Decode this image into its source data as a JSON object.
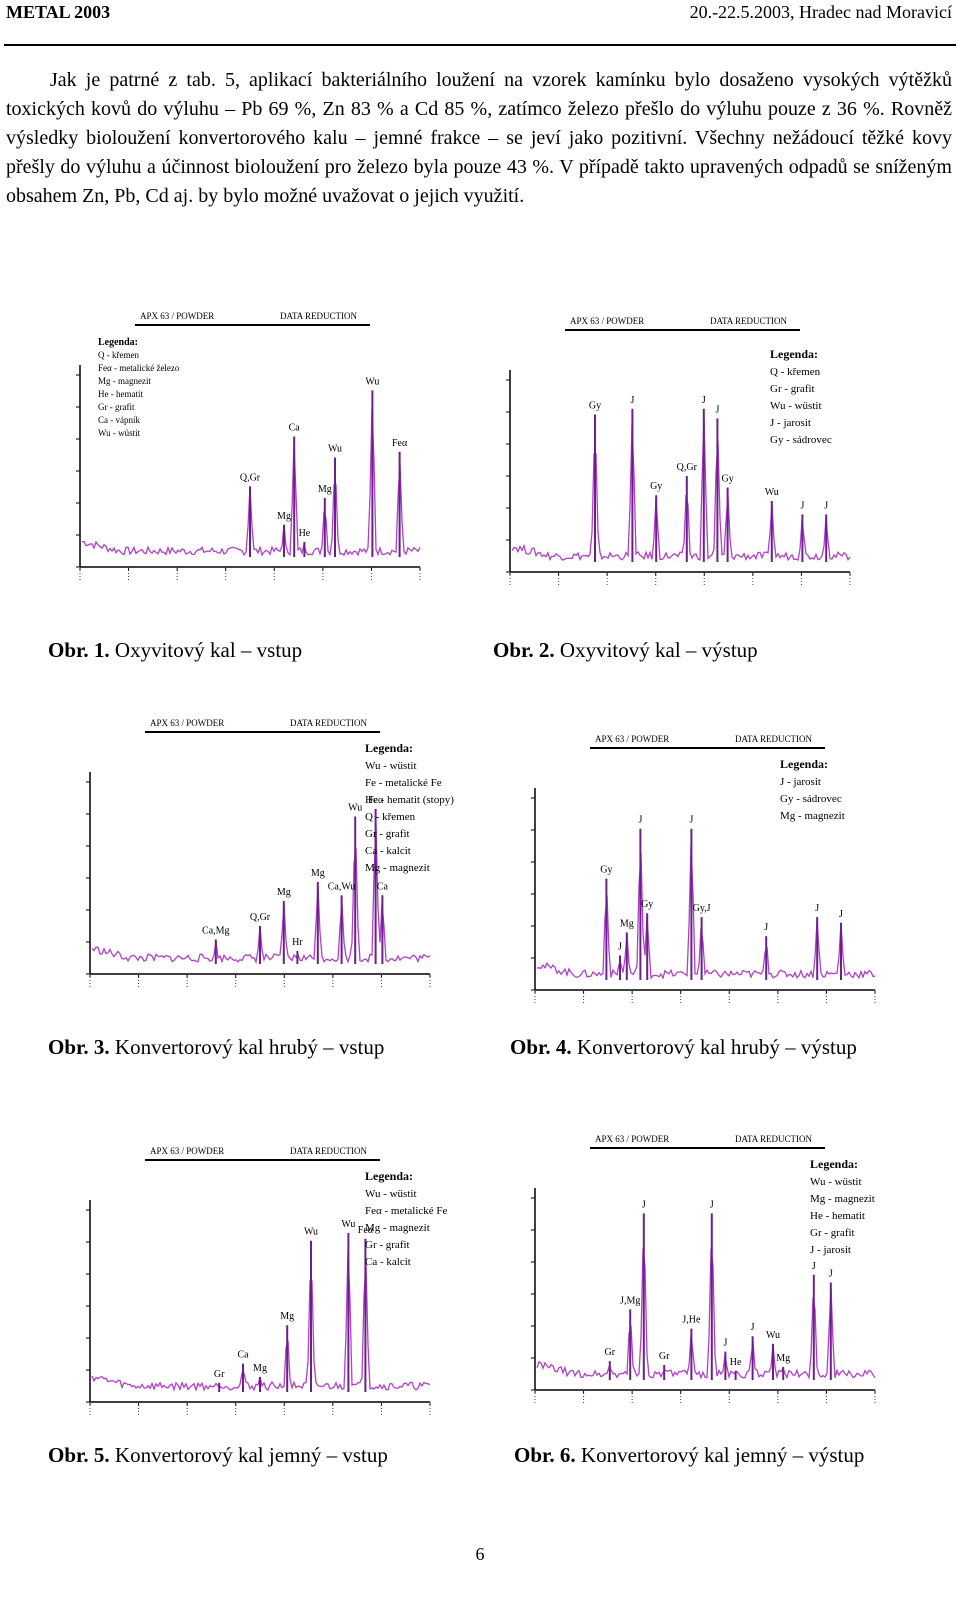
{
  "header": {
    "left": "METAL 2003",
    "right": "20.-22.5.2003, Hradec nad Moravicí"
  },
  "paragraph": "Jak je patrné z tab. 5, aplikací bakteriálního loužení na vzorek kamínku bylo dosaženo vysokých výtěžků toxických kovů do výluhu – Pb 69 %, Zn 83 % a Cd 85 %, zatímco železo přešlo do výluhu pouze z 36 %. Rovněž výsledky biolоužení konvertorového kalu – jemné frakce – se jeví jako pozitivní. Všechny nežádoucí těžké kovy přešly do výluhu a účinnost biolоužení pro železo byla pouze 43 %. V případě takto upravených odpadů se sníženým obsahem Zn, Pb, Cd aj. by bylo možné uvažovat o jejich využití.",
  "figures": [
    {
      "plot_title": "APX 63 / POWDER",
      "plot_subtitle": "DATA REDUCTION",
      "legend_title": "Legenda:",
      "legend": [
        "Q - křemen",
        "Feα - metalické železo",
        "Mg - magnezit",
        "He - hematit",
        "Gr - grafit",
        "Ca - vápník",
        "Wu - wüstit"
      ],
      "peaks": [
        "Q,Gr",
        "Mg",
        "He",
        "Ca",
        "Mg",
        "Wu",
        "Wu",
        "Feα"
      ],
      "caption_label": "Obr. 1.",
      "caption": "Oxyvitový kal – vstup"
    },
    {
      "plot_title": "APX 63 / POWDER",
      "plot_subtitle": "DATA REDUCTION",
      "legend_title": "Legenda:",
      "legend": [
        "Q - křemen",
        "Gr - grafit",
        "Wu - wüstit",
        "J - jarosit",
        "Gy - sádrovec"
      ],
      "peaks": [
        "Gy",
        "J",
        "Gy",
        "Q,Gr",
        "J",
        "J",
        "Gy",
        "Wu",
        "J",
        "J"
      ],
      "caption_label": "Obr. 2.",
      "caption": "Oxyvitový kal – výstup"
    },
    {
      "plot_title": "APX 63 / POWDER",
      "plot_subtitle": "DATA REDUCTION",
      "legend_title": "Legenda:",
      "legend": [
        "Wu - wüstit",
        "Fe - metalické Fe",
        "He - hematit (stopy)",
        "Q - křemen",
        "Gr - grafit",
        "Ca - kalcit",
        "Mg - magnezit"
      ],
      "peaks": [
        "Ca,Mg",
        "Q,Gr",
        "Mg",
        "Hr",
        "Mg",
        "Ca,Wu",
        "Wu",
        "Feα",
        "Ca"
      ],
      "caption_label": "Obr. 3.",
      "caption": "Konvertorový kal hrubý – vstup"
    },
    {
      "plot_title": "APX 63 / POWDER",
      "plot_subtitle": "DATA REDUCTION",
      "legend_title": "Legenda:",
      "legend": [
        "J - jarosit",
        "Gy - sádrovec",
        "Mg - magnezit"
      ],
      "peaks": [
        "Gy",
        "Mg",
        "J",
        "J",
        "J",
        "Gy",
        "Gy,J",
        "J",
        "J",
        "J"
      ],
      "caption_label": "Obr. 4.",
      "caption": "Konvertorový kal hrubý – výstup"
    },
    {
      "plot_title": "APX 63 / POWDER",
      "plot_subtitle": "DATA REDUCTION",
      "legend_title": "Legenda:",
      "legend": [
        "Wu - wüstit",
        "Feα - metalické Fe",
        "Mg - magnezit",
        "Gr - grafit",
        "Ca - kalcit"
      ],
      "peaks": [
        "Gr",
        "Ca",
        "Mg",
        "Mg",
        "Wu",
        "Wu",
        "Feα"
      ],
      "caption_label": "Obr. 5.",
      "caption": "Konvertorový kal jemný – vstup"
    },
    {
      "plot_title": "APX 63 / POWDER",
      "plot_subtitle": "DATA REDUCTION",
      "legend_title": "Legenda:",
      "legend": [
        "Wu - wüstit",
        "Mg - magnezit",
        "He - hematit",
        "Gr - grafit",
        "J - jarosit"
      ],
      "peaks": [
        "Gr",
        "J,Mg",
        "J",
        "Gr",
        "J,He",
        "J",
        "J",
        "He",
        "J",
        "Wu",
        "Mg",
        "J",
        "J"
      ],
      "caption_label": "Obr. 6.",
      "caption": "Konvertorový kal jemný – výstup"
    }
  ],
  "page_number": "6"
}
